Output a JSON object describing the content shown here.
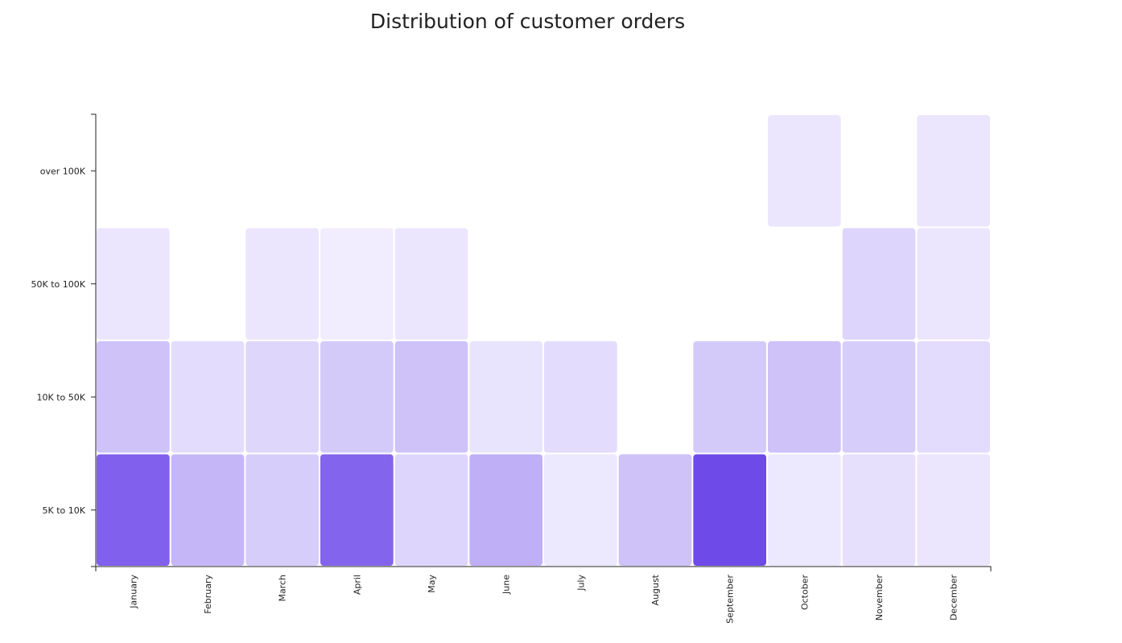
{
  "chart_data": {
    "type": "heatmap",
    "title": "Distribution of customer orders",
    "x_categories": [
      "January",
      "February",
      "March",
      "April",
      "May",
      "June",
      "July",
      "August",
      "September",
      "October",
      "November",
      "December"
    ],
    "y_categories": [
      "5K to 10K",
      "10K to 50K",
      "50K to 100K",
      "over 100K"
    ],
    "values": [
      [
        0.78,
        0.32,
        0.2,
        0.76,
        0.16,
        0.36,
        0.06,
        0.26,
        0.9,
        0.06,
        0.1,
        0.07
      ],
      [
        0.26,
        0.12,
        0.15,
        0.22,
        0.26,
        0.08,
        0.12,
        null,
        0.22,
        0.26,
        0.2,
        0.12
      ],
      [
        0.07,
        null,
        0.07,
        0.03,
        0.07,
        null,
        null,
        null,
        null,
        null,
        0.16,
        0.07
      ],
      [
        null,
        null,
        null,
        null,
        null,
        null,
        null,
        null,
        null,
        0.07,
        null,
        0.07
      ]
    ],
    "color_low": "#f5f3ff",
    "color_high": "#5f37e6",
    "xlabel": "",
    "ylabel": ""
  }
}
